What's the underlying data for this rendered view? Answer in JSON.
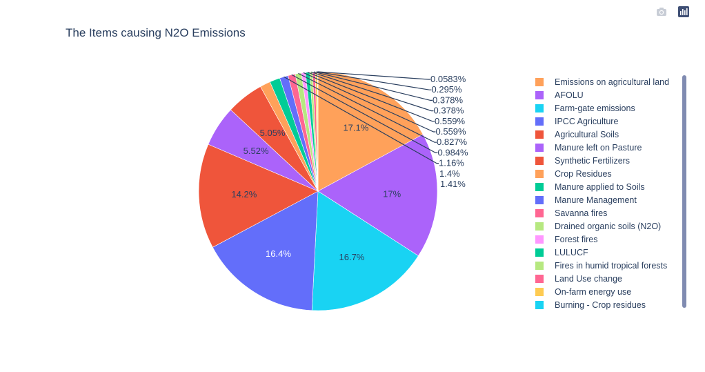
{
  "title": "The Items causing N2O Emissions",
  "modebar": {
    "camera_icon": "camera-icon",
    "plotly_icon": "plotly-logo-icon"
  },
  "chart_data": {
    "type": "pie",
    "title": "The Items causing N2O Emissions",
    "legend_position": "right",
    "slices": [
      {
        "label": "Emissions on agricultural land",
        "percent": 17.1,
        "text": "17.1%",
        "color": "#FFA15A"
      },
      {
        "label": "AFOLU",
        "percent": 17.0,
        "text": "17%",
        "color": "#AB63FA"
      },
      {
        "label": "Farm-gate emissions",
        "percent": 16.7,
        "text": "16.7%",
        "color": "#19D3F3"
      },
      {
        "label": "IPCC Agriculture",
        "percent": 16.4,
        "text": "16.4%",
        "color": "#636EFA"
      },
      {
        "label": "Agricultural Soils",
        "percent": 14.2,
        "text": "14.2%",
        "color": "#EF553B"
      },
      {
        "label": "Manure left on Pasture",
        "percent": 5.52,
        "text": "5.52%",
        "color": "#AB63FA"
      },
      {
        "label": "Synthetic Fertilizers",
        "percent": 5.05,
        "text": "5.05%",
        "color": "#EF553B"
      },
      {
        "label": "Crop Residues",
        "percent": 1.41,
        "text": "1.41%",
        "color": "#FFA15A"
      },
      {
        "label": "Manure applied to Soils",
        "percent": 1.4,
        "text": "1.4%",
        "color": "#00CC96"
      },
      {
        "label": "Manure Management",
        "percent": 1.16,
        "text": "1.16%",
        "color": "#636EFA"
      },
      {
        "label": "Savanna fires",
        "percent": 0.984,
        "text": "0.984%",
        "color": "#FF6692"
      },
      {
        "label": "Drained organic soils (N2O)",
        "percent": 0.827,
        "text": "0.827%",
        "color": "#B6E880"
      },
      {
        "label": "Forest fires",
        "percent": 0.559,
        "text": "0.559%",
        "color": "#FF97FF"
      },
      {
        "label": "LULUCF",
        "percent": 0.559,
        "text": "0.559%",
        "color": "#00CC96"
      },
      {
        "label": "Fires in humid tropical forests",
        "percent": 0.378,
        "text": "0.378%",
        "color": "#B6E880"
      },
      {
        "label": "Land Use change",
        "percent": 0.378,
        "text": "0.378%",
        "color": "#FF6692"
      },
      {
        "label": "On-farm energy use",
        "percent": 0.295,
        "text": "0.295%",
        "color": "#FECB52"
      },
      {
        "label": "Burning - Crop residues",
        "percent": 0.0583,
        "text": "0.0583%",
        "color": "#19D3F3"
      }
    ]
  }
}
